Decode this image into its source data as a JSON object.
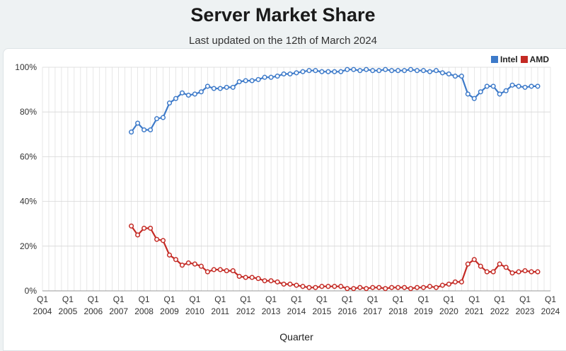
{
  "title": "Server Market Share",
  "subtitle": "Last updated on the 12th of March 2024",
  "colors": {
    "intel": "#3d7ac9",
    "amd": "#c42a24",
    "grid": "#d7d7d7",
    "axis_text": "#333333"
  },
  "chart_data": {
    "type": "line",
    "xlabel": "Quarter",
    "ylabel": "",
    "ylim": [
      0,
      100
    ],
    "y_ticks": [
      "0%",
      "20%",
      "40%",
      "60%",
      "80%",
      "100%"
    ],
    "x_tick_labels": [
      {
        "q": "Q1",
        "year": "2004"
      },
      {
        "q": "Q1",
        "year": "2005"
      },
      {
        "q": "Q1",
        "year": "2006"
      },
      {
        "q": "Q1",
        "year": "2007"
      },
      {
        "q": "Q1",
        "year": "2008"
      },
      {
        "q": "Q1",
        "year": "2009"
      },
      {
        "q": "Q1",
        "year": "2010"
      },
      {
        "q": "Q1",
        "year": "2011"
      },
      {
        "q": "Q1",
        "year": "2012"
      },
      {
        "q": "Q1",
        "year": "2013"
      },
      {
        "q": "Q1",
        "year": "2014"
      },
      {
        "q": "Q1",
        "year": "2015"
      },
      {
        "q": "Q1",
        "year": "2016"
      },
      {
        "q": "Q1",
        "year": "2017"
      },
      {
        "q": "Q1",
        "year": "2018"
      },
      {
        "q": "Q1",
        "year": "2019"
      },
      {
        "q": "Q1",
        "year": "2020"
      },
      {
        "q": "Q1",
        "year": "2021"
      },
      {
        "q": "Q1",
        "year": "2022"
      },
      {
        "q": "Q1",
        "year": "2023"
      },
      {
        "q": "Q1",
        "year": "2024"
      }
    ],
    "x_range": [
      "2004 Q1",
      "2024 Q1"
    ],
    "grid": true,
    "legend_position": "top-right",
    "start_quarter": "2007 Q3",
    "series": [
      {
        "name": "Intel",
        "values": [
          71,
          75,
          72,
          72,
          77,
          77.5,
          84,
          86,
          88.5,
          87.5,
          88,
          89,
          91.5,
          90.5,
          90.5,
          91,
          91,
          93.5,
          94,
          94,
          94.5,
          95.5,
          95.5,
          96,
          97,
          97,
          97.5,
          98,
          98.5,
          98.5,
          98,
          98,
          98,
          98,
          99,
          99,
          98.5,
          99,
          98.5,
          98.5,
          99,
          98.5,
          98.5,
          98.5,
          99,
          98.5,
          98.5,
          98,
          98.5,
          97.5,
          97,
          96,
          96,
          88,
          86,
          89,
          91.5,
          91.5,
          88,
          89.5,
          92,
          91.5,
          91,
          91.5,
          91.5
        ]
      },
      {
        "name": "AMD",
        "values": [
          29,
          25,
          28,
          28,
          23,
          22.5,
          16,
          14,
          11.5,
          12.5,
          12,
          11,
          8.5,
          9.5,
          9.5,
          9,
          9,
          6.5,
          6,
          6,
          5.5,
          4.5,
          4.5,
          4,
          3,
          3,
          2.5,
          2,
          1.5,
          1.5,
          2,
          2,
          2,
          2,
          1,
          1,
          1.5,
          1,
          1.5,
          1.5,
          1,
          1.5,
          1.5,
          1.5,
          1,
          1.5,
          1.5,
          2,
          1.5,
          2.5,
          3,
          4,
          4,
          12,
          14,
          11,
          8.5,
          8.5,
          12,
          10.5,
          8,
          8.5,
          9,
          8.5,
          8.5
        ]
      }
    ]
  }
}
